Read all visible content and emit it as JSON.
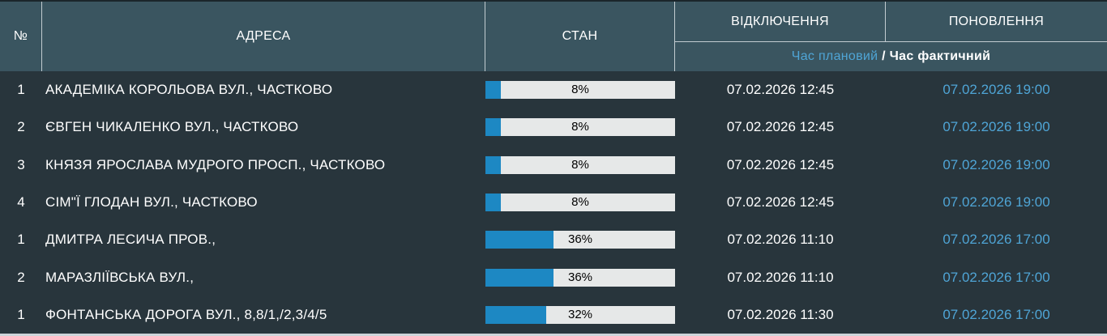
{
  "header": {
    "col_num": "№",
    "col_address": "АДРЕСА",
    "col_state": "СТАН",
    "col_outage": "ВІДКЛЮЧЕННЯ",
    "col_restore": "ПОНОВЛЕННЯ",
    "sub_planned": "Час плановий",
    "sub_separator": " / ",
    "sub_actual": "Час фактичний"
  },
  "colors": {
    "header_bg": "#3a5560",
    "body_bg": "#28353c",
    "accent_blue": "#4fa5d6",
    "bar_fill": "#1d88c3",
    "bar_track": "#e6e8e8",
    "divider": "#c2ccd1"
  },
  "table": {
    "rows": [
      {
        "num": "1",
        "address": "АКАДЕМІКА КОРОЛЬОВА ВУЛ., ЧАСТКОВО",
        "percent": 8,
        "percent_label": "8%",
        "outage_time": "07.02.2026 12:45",
        "restore_time": "07.02.2026 19:00"
      },
      {
        "num": "2",
        "address": "ЄВГЕН ЧИКАЛЕНКО ВУЛ., ЧАСТКОВО",
        "percent": 8,
        "percent_label": "8%",
        "outage_time": "07.02.2026 12:45",
        "restore_time": "07.02.2026 19:00"
      },
      {
        "num": "3",
        "address": "КНЯЗЯ ЯРОСЛАВА МУДРОГО ПРОСП., ЧАСТКОВО",
        "percent": 8,
        "percent_label": "8%",
        "outage_time": "07.02.2026 12:45",
        "restore_time": "07.02.2026 19:00"
      },
      {
        "num": "4",
        "address": "СІМ\"Ї ГЛОДАН ВУЛ., ЧАСТКОВО",
        "percent": 8,
        "percent_label": "8%",
        "outage_time": "07.02.2026 12:45",
        "restore_time": "07.02.2026 19:00"
      },
      {
        "num": "1",
        "address": "ДМИТРА ЛЕСИЧА ПРОВ.,",
        "percent": 36,
        "percent_label": "36%",
        "outage_time": "07.02.2026 11:10",
        "restore_time": "07.02.2026 17:00"
      },
      {
        "num": "2",
        "address": "МАРАЗЛІЇВСЬКА ВУЛ.,",
        "percent": 36,
        "percent_label": "36%",
        "outage_time": "07.02.2026 11:10",
        "restore_time": "07.02.2026 17:00"
      },
      {
        "num": "1",
        "address": "ФОНТАНСЬКА ДОРОГА ВУЛ., 8,8/1,/2,3/4/5",
        "percent": 32,
        "percent_label": "32%",
        "outage_time": "07.02.2026 11:30",
        "restore_time": "07.02.2026 17:00"
      }
    ]
  }
}
